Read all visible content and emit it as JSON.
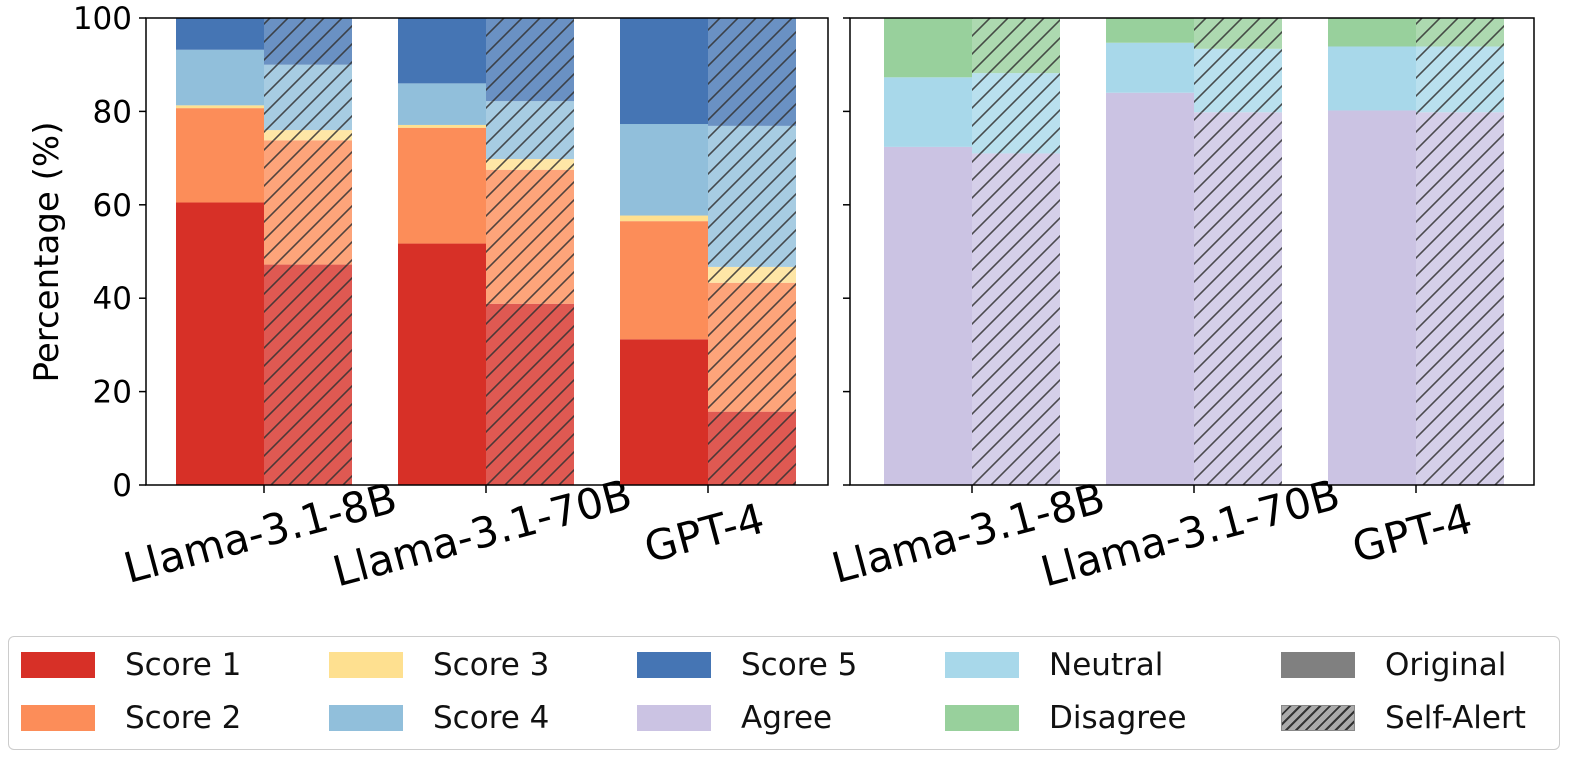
{
  "chart_data": [
    {
      "type": "bar",
      "stacked": true,
      "panel": "left",
      "ylabel": "Percentage (%)",
      "ylim": [
        0,
        100
      ],
      "yticks": [
        0,
        20,
        40,
        60,
        80,
        100
      ],
      "categories": [
        "Llama-3.1-8B",
        "Llama-3.1-70B",
        "GPT-4"
      ],
      "variants": [
        "Original",
        "Self-Alert"
      ],
      "series": [
        {
          "name": "Score 1",
          "color": "#d73027",
          "original": [
            60.5,
            51.7,
            31.2
          ],
          "self_alert": [
            47.2,
            38.8,
            15.7
          ]
        },
        {
          "name": "Score 2",
          "color": "#fc8d59",
          "original": [
            20.2,
            24.8,
            25.3
          ],
          "self_alert": [
            26.6,
            28.7,
            27.6
          ]
        },
        {
          "name": "Score 3",
          "color": "#fee090",
          "original": [
            0.6,
            0.6,
            1.2
          ],
          "self_alert": [
            2.2,
            2.3,
            3.4
          ]
        },
        {
          "name": "Score 4",
          "color": "#91bfdb",
          "original": [
            11.9,
            8.9,
            19.6
          ],
          "self_alert": [
            14.0,
            12.4,
            30.2
          ]
        },
        {
          "name": "Score 5",
          "color": "#4575b4",
          "original": [
            6.8,
            14.0,
            22.7
          ],
          "self_alert": [
            10.0,
            17.8,
            23.1
          ]
        }
      ]
    },
    {
      "type": "bar",
      "stacked": true,
      "panel": "right",
      "ylim": [
        0,
        100
      ],
      "yticks": [
        0,
        20,
        40,
        60,
        80,
        100
      ],
      "categories": [
        "Llama-3.1-8B",
        "Llama-3.1-70B",
        "GPT-4"
      ],
      "variants": [
        "Original",
        "Self-Alert"
      ],
      "series": [
        {
          "name": "Agree",
          "color": "#cbc3e3",
          "original": [
            72.4,
            84.0,
            80.2
          ],
          "self_alert": [
            71.0,
            79.8,
            79.8
          ]
        },
        {
          "name": "Neutral",
          "color": "#a8d8ea",
          "original": [
            14.9,
            10.7,
            13.7
          ],
          "self_alert": [
            17.2,
            13.6,
            14.1
          ]
        },
        {
          "name": "Disagree",
          "color": "#98d09c",
          "original": [
            12.7,
            5.3,
            6.1
          ],
          "self_alert": [
            11.8,
            6.6,
            6.1
          ]
        }
      ]
    }
  ],
  "legend": {
    "items": [
      {
        "label": "Score 1",
        "color": "#d73027",
        "hatch": false
      },
      {
        "label": "Score 3",
        "color": "#fee090",
        "hatch": false
      },
      {
        "label": "Score 5",
        "color": "#4575b4",
        "hatch": false
      },
      {
        "label": "Neutral",
        "color": "#a8d8ea",
        "hatch": false
      },
      {
        "label": "Original",
        "color": "#808080",
        "hatch": false
      },
      {
        "label": "Score 2",
        "color": "#fc8d59",
        "hatch": false
      },
      {
        "label": "Score 4",
        "color": "#91bfdb",
        "hatch": false
      },
      {
        "label": "Agree",
        "color": "#cbc3e3",
        "hatch": false
      },
      {
        "label": "Disagree",
        "color": "#98d09c",
        "hatch": false
      },
      {
        "label": "Self-Alert",
        "color": "#aaaaaa",
        "hatch": true
      }
    ]
  }
}
